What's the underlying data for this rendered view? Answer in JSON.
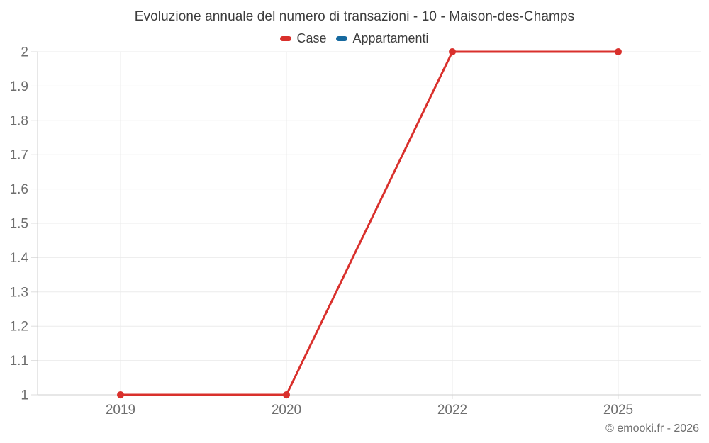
{
  "title": "Evoluzione annuale del numero di transazioni - 10 - Maison-des-Champs",
  "footer": {
    "credit": "© emooki.fr - 2026"
  },
  "colors": {
    "series_case": "#d9302c",
    "series_appartamenti": "#16699f",
    "grid_line": "#ebebeb",
    "axis_line": "#cfcfcf",
    "tick_mark": "#dedede",
    "tick_label": "#6e6e6e",
    "title_text": "#3d3d3d"
  },
  "chart_data": {
    "type": "line",
    "title": "Evoluzione annuale del numero di transazioni - 10 - Maison-des-Champs",
    "categories": [
      "2019",
      "2020",
      "2022",
      "2025"
    ],
    "series": [
      {
        "name": "Case",
        "color": "#d9302c",
        "values": [
          1,
          1,
          2,
          2
        ]
      },
      {
        "name": "Appartamenti",
        "color": "#16699f",
        "values": [
          null,
          null,
          null,
          null
        ]
      }
    ],
    "xlabel": "",
    "ylabel": "",
    "ylim": [
      1,
      2
    ],
    "yticks": [
      "1",
      "1.1",
      "1.2",
      "1.3",
      "1.4",
      "1.5",
      "1.6",
      "1.7",
      "1.8",
      "1.9",
      "2"
    ],
    "grid": true,
    "legend_position": "top"
  }
}
